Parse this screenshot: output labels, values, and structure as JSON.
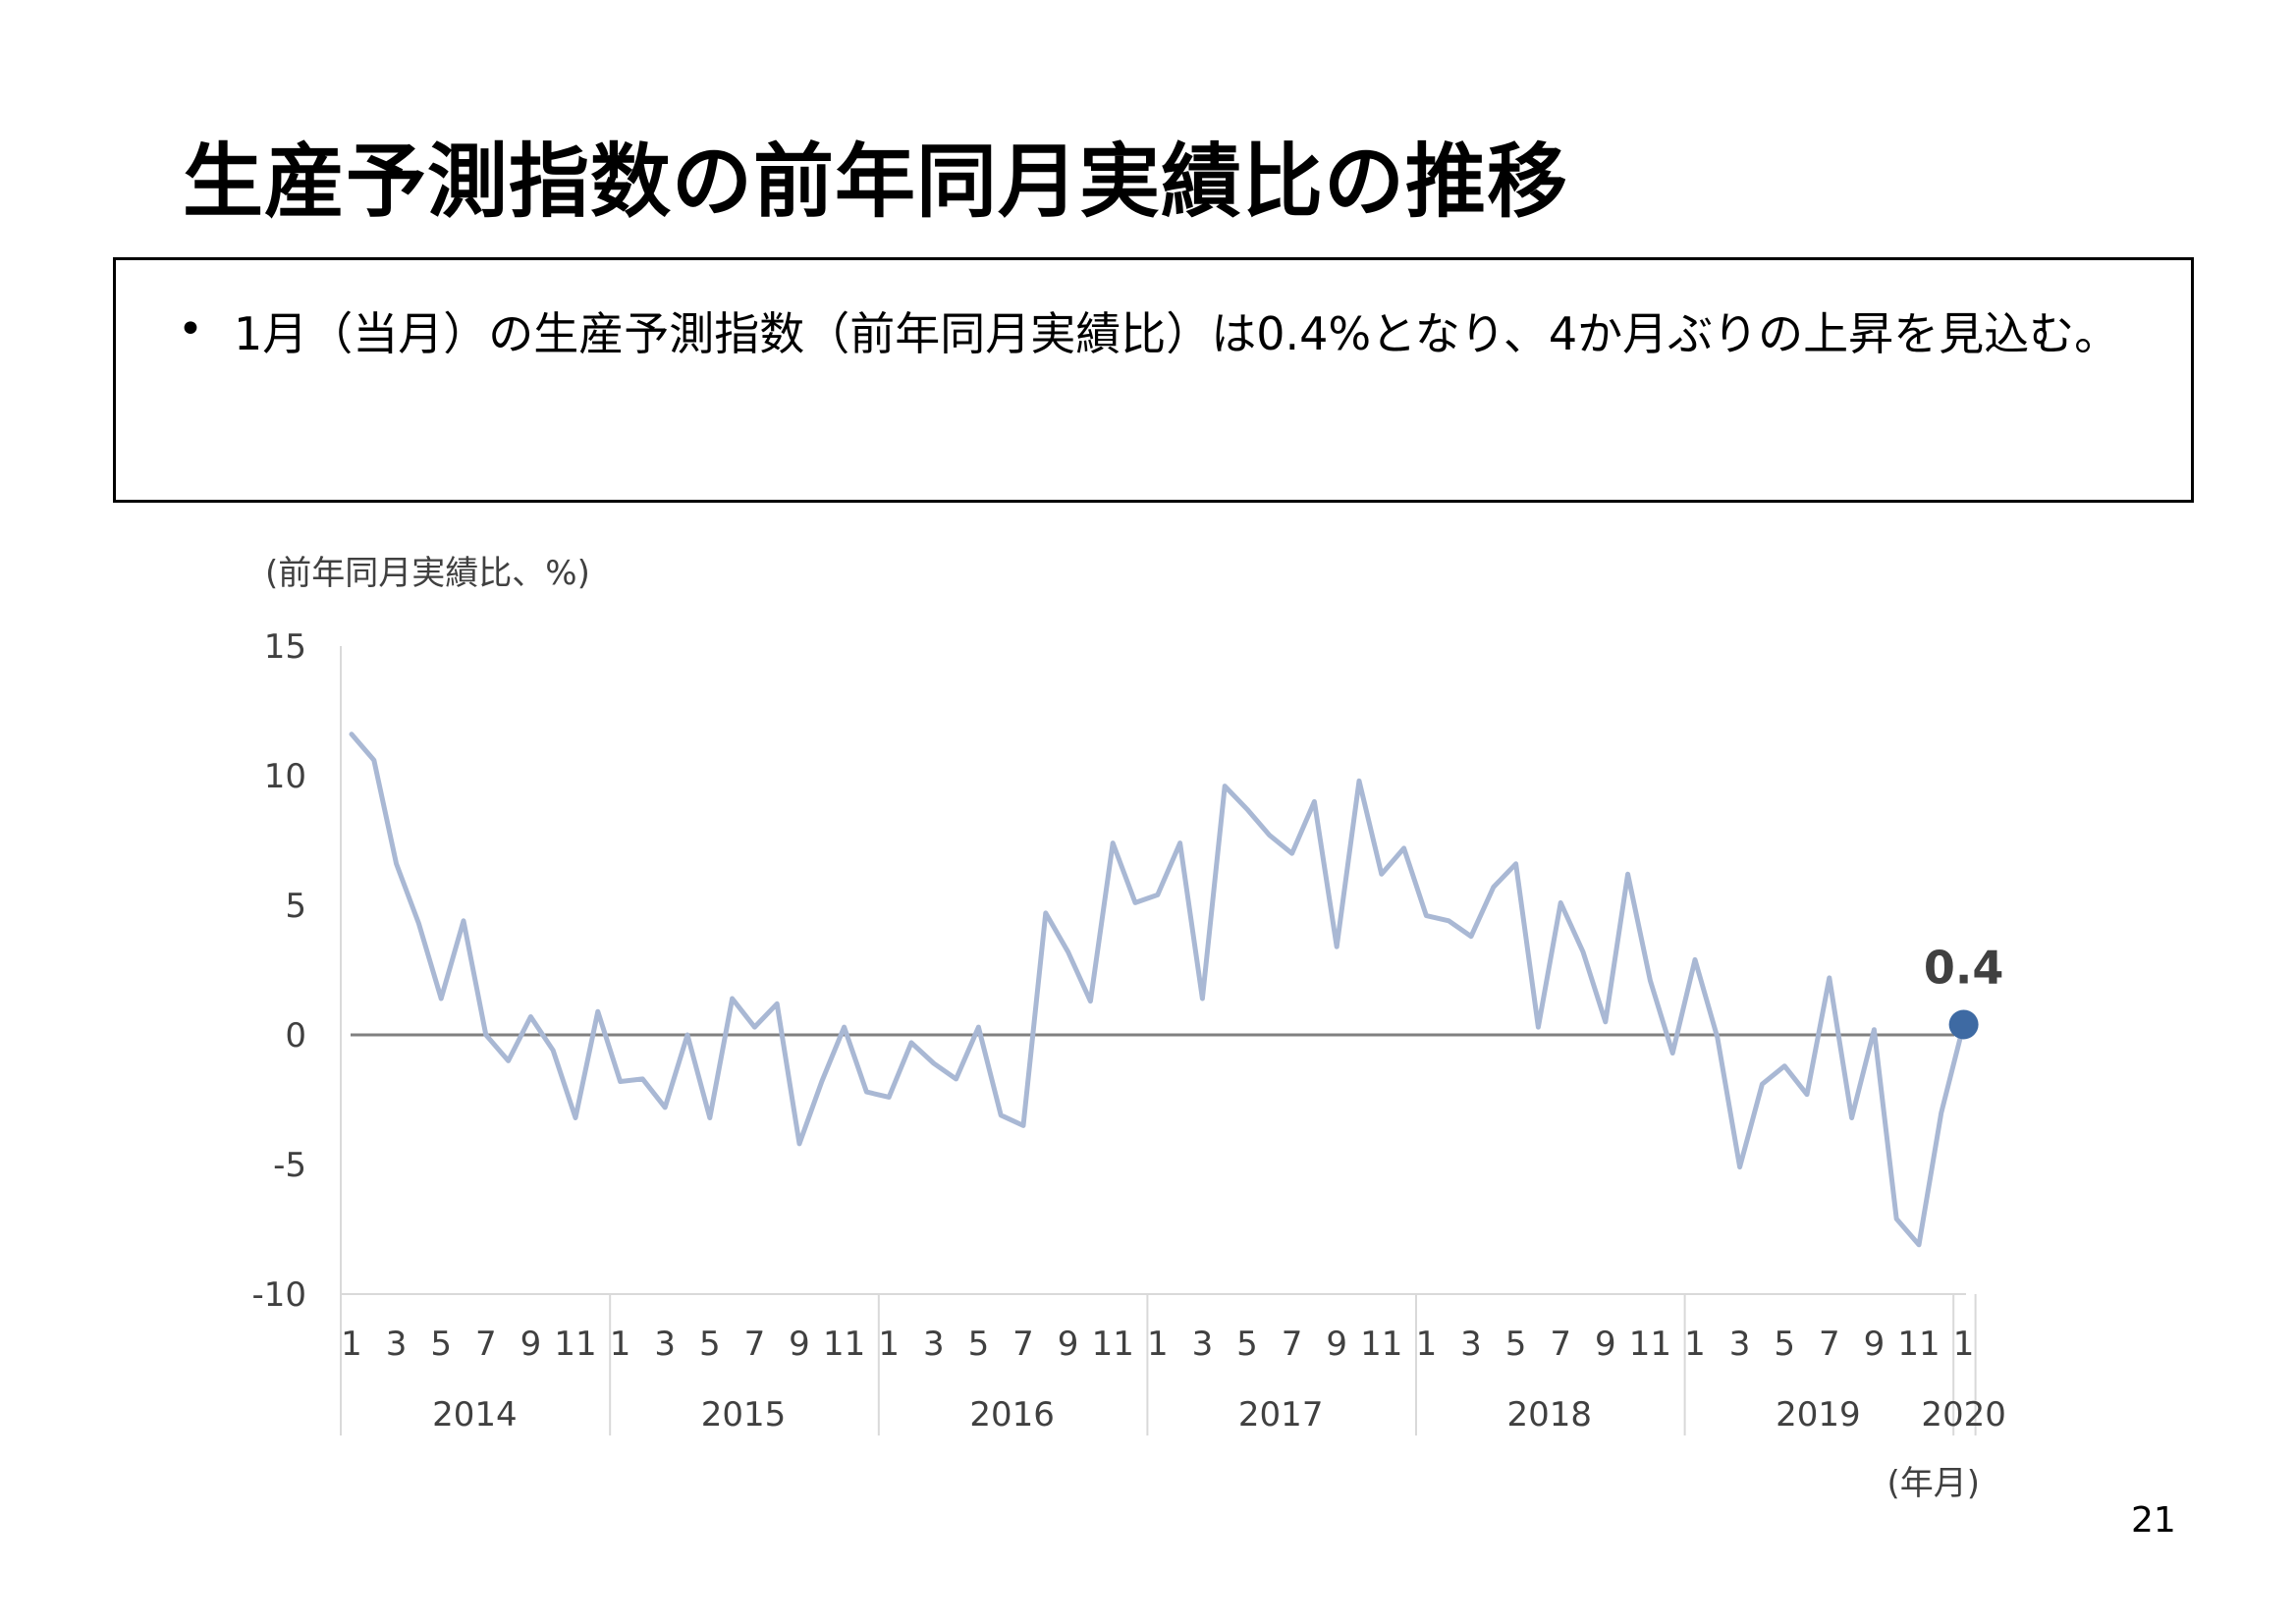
{
  "title": "生産予測指数の前年同月実績比の推移",
  "summary": {
    "bullet": "•",
    "text": "1月（当月）の生産予測指数（前年同月実績比）は0.4%となり、4か月ぶりの上昇を見込む。"
  },
  "page_number": "21",
  "colors": {
    "series_line": "#a9b8d4",
    "zero_line": "#808080",
    "last_point": "#3e6aa3",
    "axis": "#d9d9d9",
    "tick_text": "#404040"
  },
  "chart_data": {
    "type": "line",
    "ylabel": "(前年同月実績比、%)",
    "xlabel": "(年月)",
    "ylim": [
      -10,
      15
    ],
    "yticks": [
      "15",
      "10",
      "5",
      "0",
      "-5",
      "-10"
    ],
    "month_tick_labels": [
      "1",
      "3",
      "5",
      "7",
      "9",
      "11"
    ],
    "years": [
      "2014",
      "2015",
      "2016",
      "2017",
      "2018",
      "2019",
      "2020"
    ],
    "series": [
      {
        "values": [
          11.6,
          10.6,
          6.6,
          4.3,
          1.4,
          4.4,
          0.0,
          -1.0,
          0.7,
          -0.6,
          -3.2,
          0.9,
          -1.8,
          -1.7,
          -2.8,
          0.0,
          -3.2,
          1.4,
          0.3,
          1.2,
          -4.2,
          -1.8,
          0.3,
          -2.2,
          -2.4,
          -0.3,
          -1.1,
          -1.7,
          0.3,
          -3.1,
          -3.5,
          4.7,
          3.2,
          1.3,
          7.4,
          5.1,
          5.4,
          7.4,
          1.4,
          9.6,
          8.7,
          7.7,
          7.0,
          9.0,
          3.4,
          9.8,
          6.2,
          7.2,
          4.6,
          4.4,
          3.8,
          5.7,
          6.6,
          0.3,
          5.1,
          3.2,
          0.5,
          6.2,
          2.1,
          -0.7,
          2.9,
          -0.1,
          -5.1,
          -1.9,
          -1.2,
          -2.3,
          2.2,
          -3.2,
          0.2,
          -7.1,
          -8.1,
          -3.0,
          0.4
        ]
      }
    ],
    "annotation": {
      "label": "0.4",
      "value": 0.4
    }
  }
}
